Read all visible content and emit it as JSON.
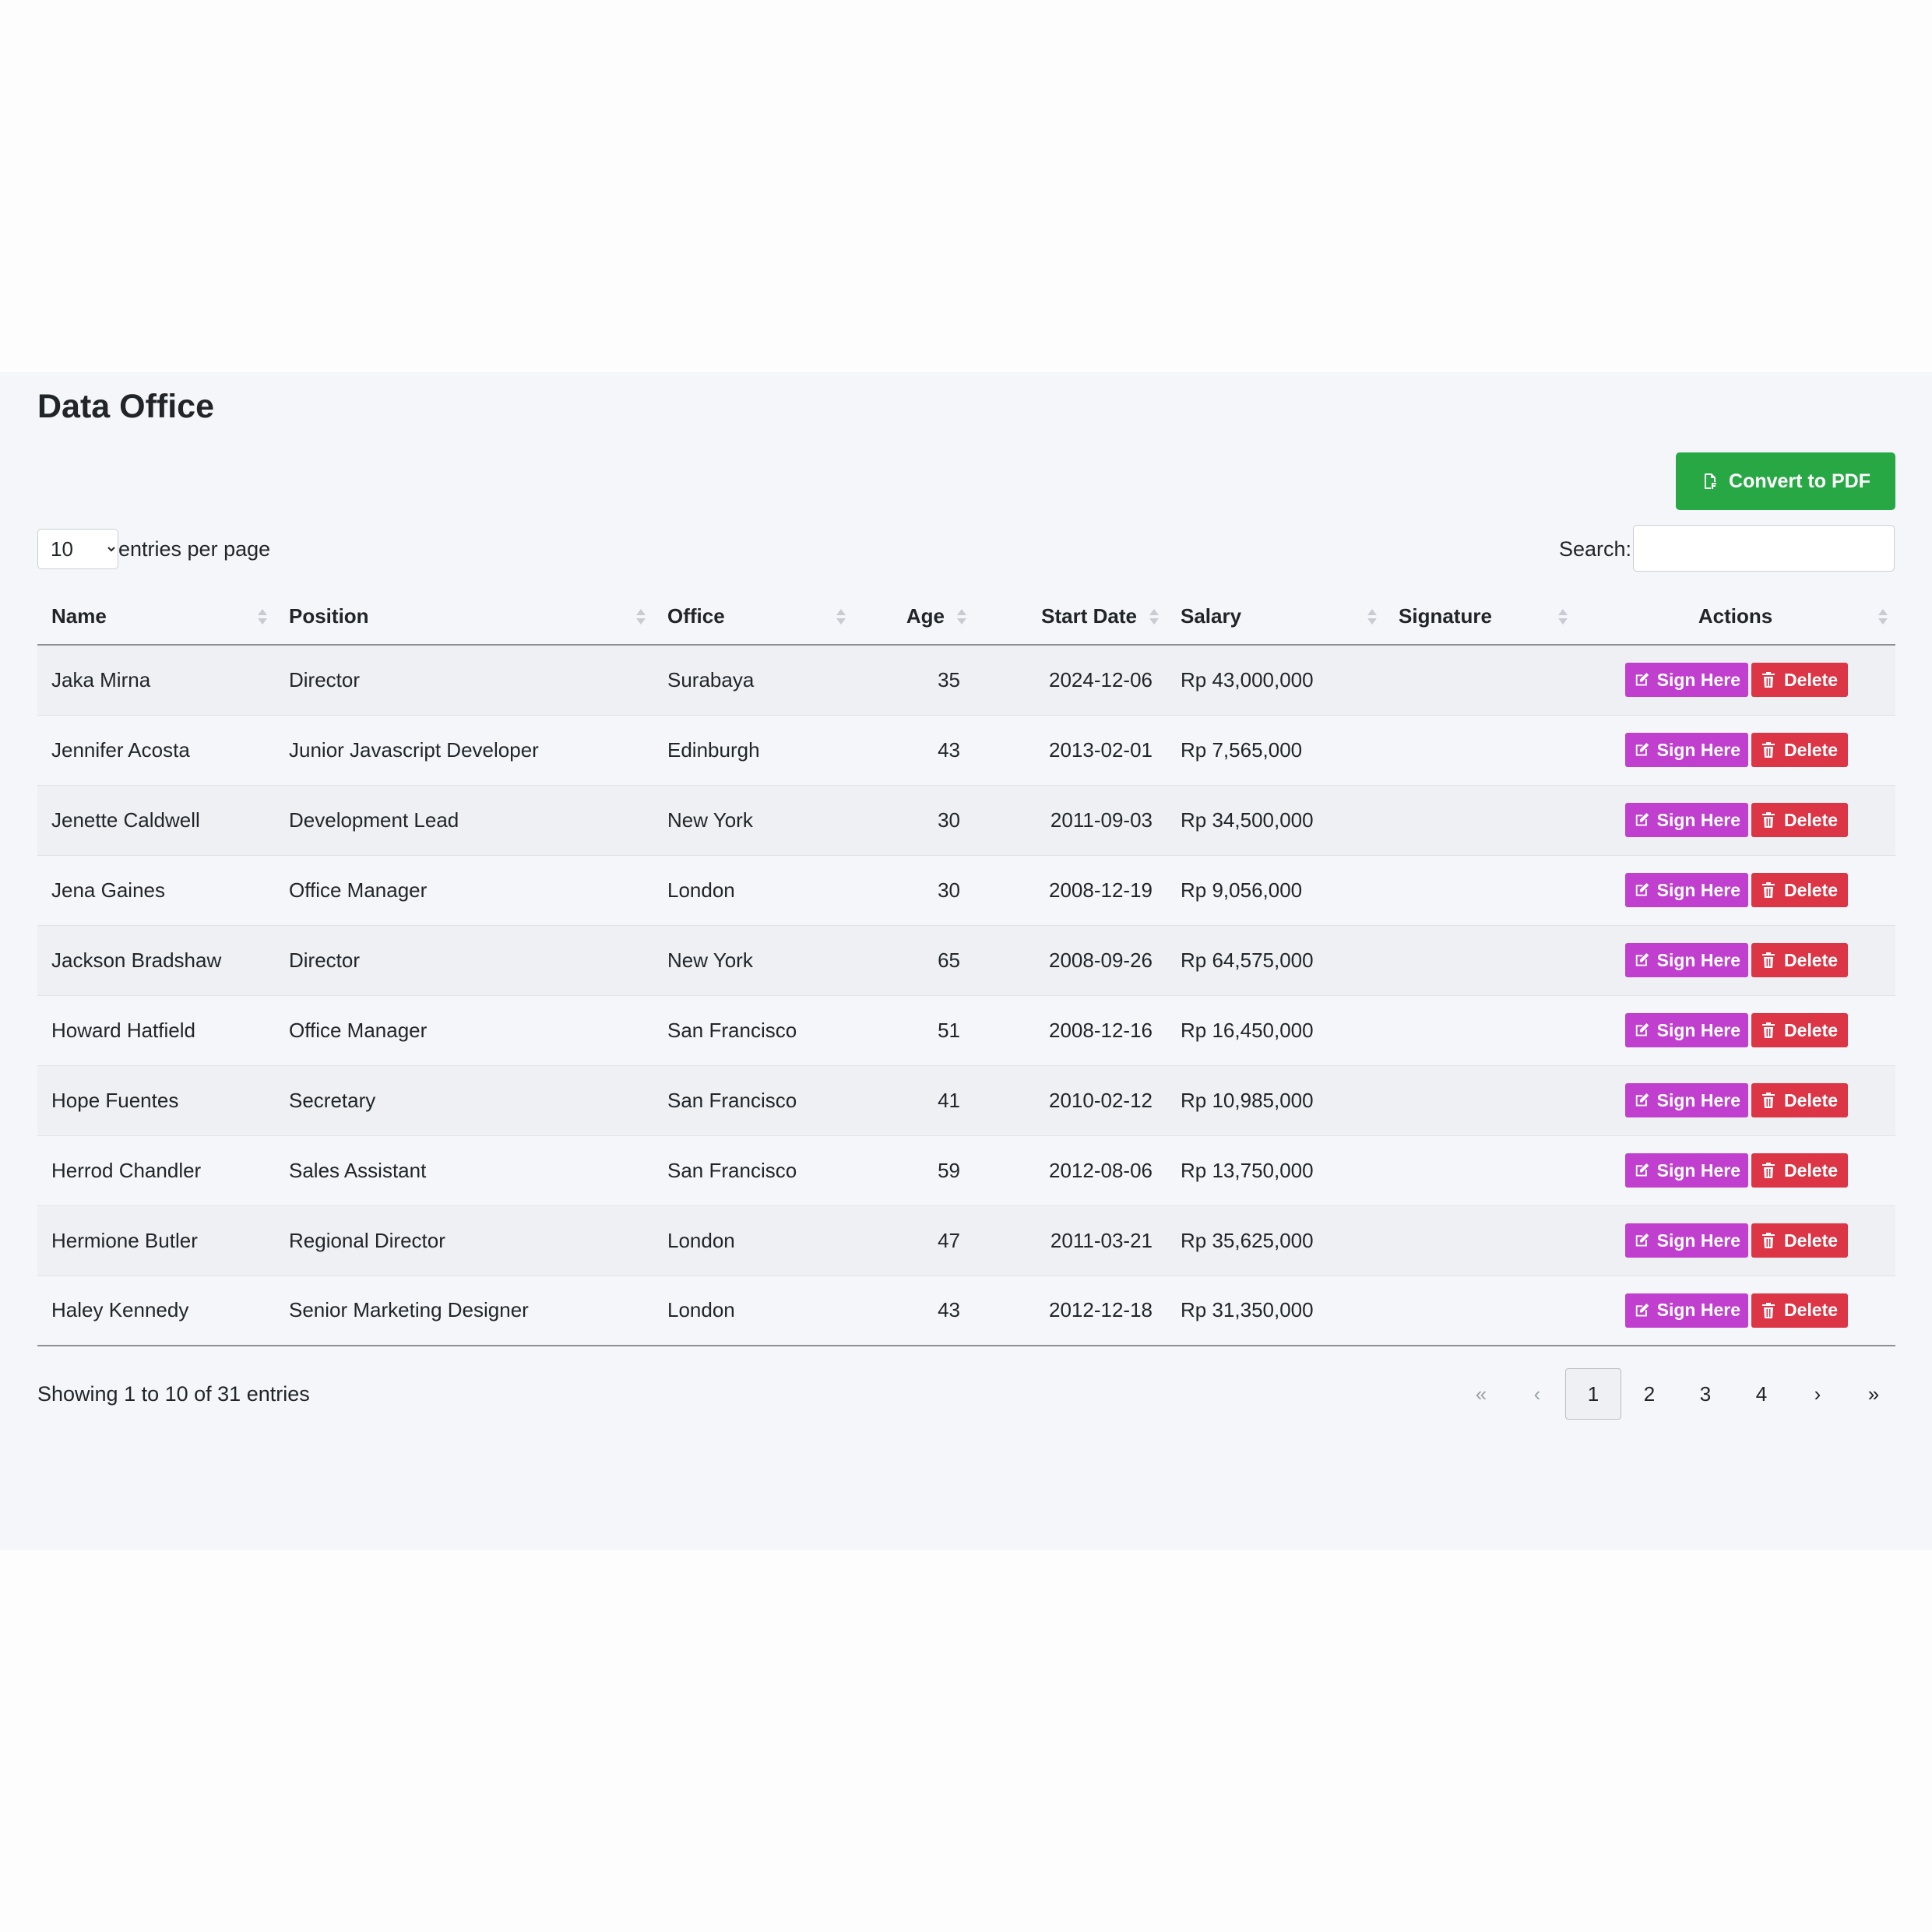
{
  "page": {
    "title": "Data Office",
    "convert_label": "Convert to PDF",
    "entries_value": "10",
    "entries_options": [
      "10"
    ],
    "entries_label": "entries per page",
    "search_label": "Search:",
    "search_value": ""
  },
  "colors": {
    "convert_button": "#28a745",
    "sign_button": "#c03fce",
    "delete_button": "#dc3545"
  },
  "table": {
    "columns": [
      "Name",
      "Position",
      "Office",
      "Age",
      "Start Date",
      "Salary",
      "Signature",
      "Actions"
    ],
    "sign_label": "Sign Here",
    "delete_label": "Delete",
    "rows": [
      {
        "name": "Jaka Mirna",
        "position": "Director",
        "office": "Surabaya",
        "age": "35",
        "start_date": "2024-12-06",
        "salary": "Rp 43,000,000",
        "signature": ""
      },
      {
        "name": "Jennifer Acosta",
        "position": "Junior Javascript Developer",
        "office": "Edinburgh",
        "age": "43",
        "start_date": "2013-02-01",
        "salary": "Rp 7,565,000",
        "signature": ""
      },
      {
        "name": "Jenette Caldwell",
        "position": "Development Lead",
        "office": "New York",
        "age": "30",
        "start_date": "2011-09-03",
        "salary": "Rp 34,500,000",
        "signature": ""
      },
      {
        "name": "Jena Gaines",
        "position": "Office Manager",
        "office": "London",
        "age": "30",
        "start_date": "2008-12-19",
        "salary": "Rp 9,056,000",
        "signature": ""
      },
      {
        "name": "Jackson Bradshaw",
        "position": "Director",
        "office": "New York",
        "age": "65",
        "start_date": "2008-09-26",
        "salary": "Rp 64,575,000",
        "signature": ""
      },
      {
        "name": "Howard Hatfield",
        "position": "Office Manager",
        "office": "San Francisco",
        "age": "51",
        "start_date": "2008-12-16",
        "salary": "Rp 16,450,000",
        "signature": ""
      },
      {
        "name": "Hope Fuentes",
        "position": "Secretary",
        "office": "San Francisco",
        "age": "41",
        "start_date": "2010-02-12",
        "salary": "Rp 10,985,000",
        "signature": ""
      },
      {
        "name": "Herrod Chandler",
        "position": "Sales Assistant",
        "office": "San Francisco",
        "age": "59",
        "start_date": "2012-08-06",
        "salary": "Rp 13,750,000",
        "signature": ""
      },
      {
        "name": "Hermione Butler",
        "position": "Regional Director",
        "office": "London",
        "age": "47",
        "start_date": "2011-03-21",
        "salary": "Rp 35,625,000",
        "signature": ""
      },
      {
        "name": "Haley Kennedy",
        "position": "Senior Marketing Designer",
        "office": "London",
        "age": "43",
        "start_date": "2012-12-18",
        "salary": "Rp 31,350,000",
        "signature": ""
      }
    ]
  },
  "footer": {
    "info": "Showing 1 to 10 of 31 entries",
    "pagination": {
      "first": "«",
      "prev": "‹",
      "pages": [
        "1",
        "2",
        "3",
        "4"
      ],
      "active_page": "1",
      "next": "›",
      "last": "»"
    }
  }
}
